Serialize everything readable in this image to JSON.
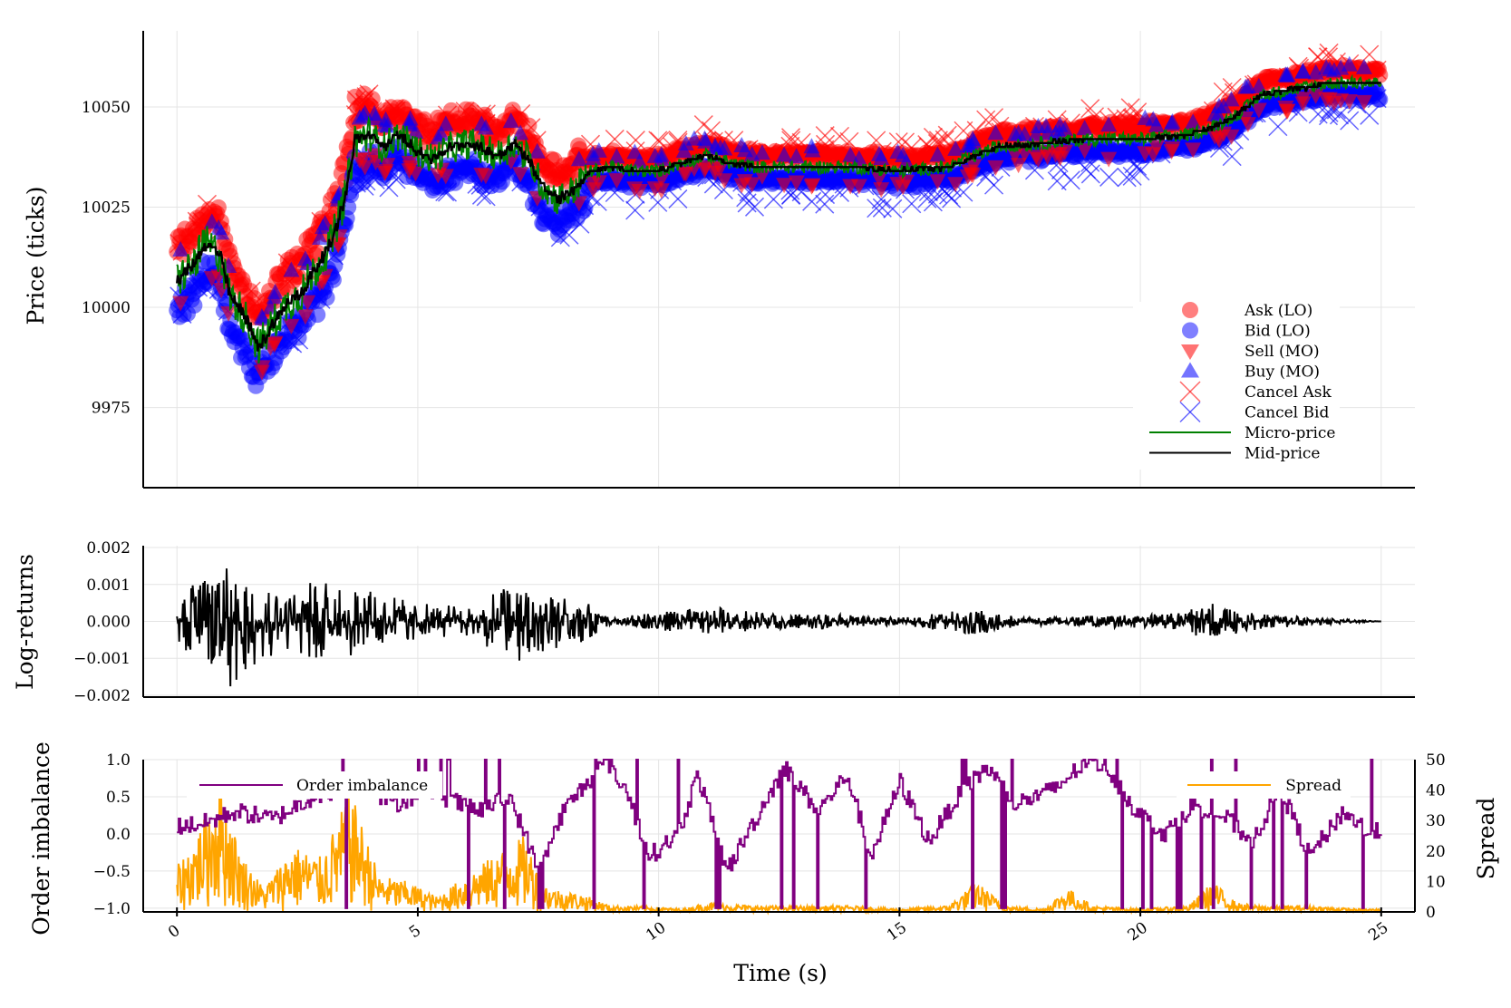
{
  "chart_data": [
    {
      "type": "scatter",
      "panel": "price",
      "ylabel": "Price (ticks)",
      "xlabel": "",
      "xlim": [
        -0.7,
        25.7
      ],
      "ylim": [
        9955,
        10069
      ],
      "yticks": [
        9975,
        10000,
        10025,
        10050
      ],
      "ytick_labels": [
        "9975",
        "10000",
        "10025",
        "10050"
      ],
      "grid": true,
      "legend_position": "bottom-right",
      "legend": [
        "Ask (LO)",
        "Bid (LO)",
        "Sell (MO)",
        "Buy (MO)",
        "Cancel Ask",
        "Cancel Bid",
        "Micro-price",
        "Mid-price"
      ],
      "colors": {
        "ask": "#ff0000",
        "bid": "#0000ff",
        "micro": "#008000",
        "mid": "#000000"
      },
      "mid_price_path": [
        [
          0.0,
          10007
        ],
        [
          0.3,
          10010
        ],
        [
          0.6,
          10016
        ],
        [
          0.9,
          10013
        ],
        [
          1.1,
          10003
        ],
        [
          1.4,
          9998
        ],
        [
          1.7,
          9990
        ],
        [
          2.0,
          9996
        ],
        [
          2.3,
          10001
        ],
        [
          2.6,
          10004
        ],
        [
          2.9,
          10010
        ],
        [
          3.2,
          10016
        ],
        [
          3.5,
          10028
        ],
        [
          3.7,
          10042
        ],
        [
          4.0,
          10043
        ],
        [
          4.3,
          10040
        ],
        [
          4.6,
          10043
        ],
        [
          5.0,
          10039
        ],
        [
          5.3,
          10037
        ],
        [
          5.7,
          10040
        ],
        [
          6.1,
          10041
        ],
        [
          6.4,
          10039
        ],
        [
          6.7,
          10038
        ],
        [
          7.0,
          10041
        ],
        [
          7.3,
          10037
        ],
        [
          7.6,
          10030
        ],
        [
          7.9,
          10027
        ],
        [
          8.2,
          10029
        ],
        [
          8.6,
          10034
        ],
        [
          9.0,
          10035
        ],
        [
          9.5,
          10034
        ],
        [
          10.0,
          10034
        ],
        [
          10.5,
          10036
        ],
        [
          11.0,
          10038
        ],
        [
          11.5,
          10036
        ],
        [
          12.0,
          10035
        ],
        [
          13.0,
          10035
        ],
        [
          14.0,
          10035
        ],
        [
          15.0,
          10034
        ],
        [
          16.0,
          10035
        ],
        [
          16.6,
          10038
        ],
        [
          17.0,
          10040
        ],
        [
          18.0,
          10041
        ],
        [
          19.0,
          10042
        ],
        [
          20.0,
          10042
        ],
        [
          21.0,
          10043
        ],
        [
          21.5,
          10045
        ],
        [
          22.0,
          10048
        ],
        [
          22.5,
          10053
        ],
        [
          23.0,
          10054
        ],
        [
          24.0,
          10056
        ],
        [
          25.0,
          10056
        ]
      ]
    },
    {
      "type": "line",
      "panel": "log-returns",
      "ylabel": "Log-returns",
      "xlim": [
        -0.7,
        25.7
      ],
      "ylim": [
        -0.00205,
        0.00205
      ],
      "yticks": [
        -0.002,
        -0.001,
        0.0,
        0.001,
        0.002
      ],
      "ytick_labels": [
        "−0.002",
        "−0.001",
        "0.000",
        "0.001",
        "0.002"
      ],
      "grid": true,
      "color": "#000000",
      "envelope": [
        [
          0.0,
          0.0006
        ],
        [
          1.0,
          0.0019
        ],
        [
          2.0,
          0.0009
        ],
        [
          2.8,
          0.0011
        ],
        [
          3.9,
          0.0009
        ],
        [
          5.0,
          0.0005
        ],
        [
          6.0,
          0.0004
        ],
        [
          7.0,
          0.0011
        ],
        [
          8.4,
          0.0006
        ],
        [
          9.0,
          0.0001
        ],
        [
          11.1,
          0.0004
        ],
        [
          12.5,
          0.0002
        ],
        [
          13.5,
          0.0002
        ],
        [
          15.0,
          0.0001
        ],
        [
          16.7,
          0.0004
        ],
        [
          17.5,
          0.0001
        ],
        [
          20.5,
          0.0002
        ],
        [
          21.5,
          0.0005
        ],
        [
          22.5,
          0.0002
        ],
        [
          25.0,
          0.0
        ]
      ]
    },
    {
      "type": "line",
      "panel": "order-imbalance-spread",
      "ylabel": "Order imbalance",
      "y2label": "Spread",
      "xlabel": "Time (s)",
      "xlim": [
        -0.7,
        25.7
      ],
      "ylim": [
        -1.05,
        1.0
      ],
      "y2lim": [
        0,
        50
      ],
      "yticks": [
        -1.0,
        -0.5,
        0.0,
        0.5,
        1.0
      ],
      "ytick_labels": [
        "−1.0",
        "−0.5",
        "0.0",
        "0.5",
        "1.0"
      ],
      "y2ticks": [
        0,
        10,
        20,
        30,
        40,
        50
      ],
      "y2tick_labels": [
        "0",
        "10",
        "20",
        "30",
        "40",
        "50"
      ],
      "xticks": [
        0,
        5,
        10,
        15,
        20,
        25
      ],
      "xtick_labels": [
        "0",
        "5",
        "10",
        "15",
        "20",
        "25"
      ],
      "grid": true,
      "series": [
        {
          "name": "Order imbalance",
          "color": "#800080",
          "values": [
            [
              0.0,
              0.1
            ],
            [
              0.6,
              0.15
            ],
            [
              1.2,
              0.3
            ],
            [
              2.0,
              0.2
            ],
            [
              2.8,
              0.5
            ],
            [
              3.8,
              0.7
            ],
            [
              4.5,
              0.4
            ],
            [
              5.2,
              0.6
            ],
            [
              6.2,
              0.3
            ],
            [
              6.9,
              0.5
            ],
            [
              7.5,
              -0.5
            ],
            [
              8.0,
              0.3
            ],
            [
              8.9,
              1.0
            ],
            [
              9.3,
              0.6
            ],
            [
              9.8,
              -0.3
            ],
            [
              10.4,
              0.0
            ],
            [
              10.8,
              0.8
            ],
            [
              11.4,
              -0.5
            ],
            [
              12.0,
              0.2
            ],
            [
              12.6,
              0.9
            ],
            [
              13.3,
              0.3
            ],
            [
              13.9,
              0.8
            ],
            [
              14.4,
              -0.3
            ],
            [
              15.0,
              0.7
            ],
            [
              15.6,
              -0.1
            ],
            [
              16.2,
              0.5
            ],
            [
              16.8,
              0.9
            ],
            [
              17.4,
              0.4
            ],
            [
              18.2,
              0.6
            ],
            [
              18.9,
              1.0
            ],
            [
              19.3,
              0.9
            ],
            [
              19.9,
              0.3
            ],
            [
              20.5,
              0.0
            ],
            [
              21.1,
              0.4
            ],
            [
              21.8,
              0.2
            ],
            [
              22.3,
              -0.1
            ],
            [
              22.9,
              0.6
            ],
            [
              23.5,
              -0.3
            ],
            [
              24.2,
              0.3
            ],
            [
              24.8,
              0.0
            ],
            [
              25.0,
              0.05
            ]
          ]
        },
        {
          "name": "Spread",
          "color": "#ffa500",
          "axis": "right",
          "values": [
            [
              0.0,
              15
            ],
            [
              0.4,
              25
            ],
            [
              0.9,
              45
            ],
            [
              1.3,
              20
            ],
            [
              1.8,
              8
            ],
            [
              2.4,
              22
            ],
            [
              3.0,
              18
            ],
            [
              3.6,
              40
            ],
            [
              4.2,
              12
            ],
            [
              4.8,
              10
            ],
            [
              5.4,
              5
            ],
            [
              6.0,
              12
            ],
            [
              6.7,
              20
            ],
            [
              7.2,
              25
            ],
            [
              7.7,
              8
            ],
            [
              8.4,
              6
            ],
            [
              9.0,
              2
            ],
            [
              9.5,
              2
            ],
            [
              10.5,
              1
            ],
            [
              11.0,
              3
            ],
            [
              12.0,
              2
            ],
            [
              13.0,
              2
            ],
            [
              14.0,
              2
            ],
            [
              15.0,
              1
            ],
            [
              16.0,
              2
            ],
            [
              16.6,
              10
            ],
            [
              17.2,
              2
            ],
            [
              18.0,
              1
            ],
            [
              18.5,
              8
            ],
            [
              19.0,
              2
            ],
            [
              20.0,
              1
            ],
            [
              21.0,
              2
            ],
            [
              21.5,
              10
            ],
            [
              22.0,
              3
            ],
            [
              22.5,
              2
            ],
            [
              23.5,
              2
            ],
            [
              24.5,
              1
            ],
            [
              25.0,
              1
            ]
          ]
        }
      ],
      "legend": [
        "Order imbalance",
        "Spread"
      ]
    }
  ]
}
